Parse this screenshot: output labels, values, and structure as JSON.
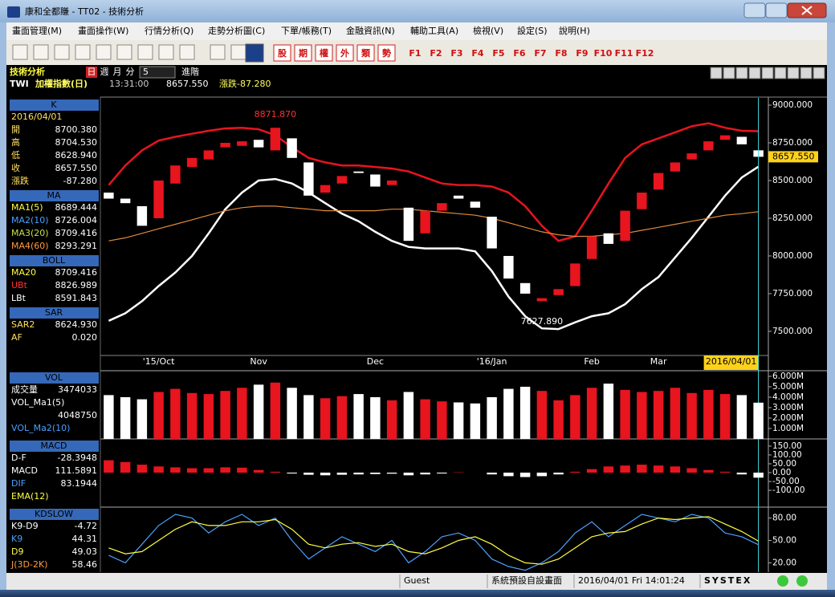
{
  "window": {
    "title": "康和全都賺 - TT02 - 技術分析"
  },
  "menu": [
    "畫面管理(M)",
    "畫面操作(W)",
    "行情分析(Q)",
    "走勢分析圖(C)",
    "下單/帳務(T)",
    "金融資訊(N)",
    "輔助工具(A)",
    "檢視(V)",
    "設定(S)",
    "說明(H)"
  ],
  "toolbar": {
    "quick": [
      "股",
      "期",
      "權",
      "外",
      "類",
      "勢"
    ],
    "function_keys": [
      "F1",
      "F2",
      "F3",
      "F4",
      "F5",
      "F6",
      "F7",
      "F8",
      "F9",
      "F10",
      "F11",
      "F12"
    ]
  },
  "header": {
    "title": "技術分析",
    "periods": [
      "日",
      "週",
      "月",
      "分"
    ],
    "interval": "5",
    "advanced": "進階",
    "symbol": "TWI",
    "name": "加權指數(日)",
    "time": "13:31:00",
    "price": "8657.550",
    "change": "漲跌-87.280"
  },
  "indicators": [
    {
      "title": "K",
      "rows": [
        {
          "label": "2016/04/01"
        },
        {
          "label": "開",
          "value": "8700.380"
        },
        {
          "label": "高",
          "value": "8704.530"
        },
        {
          "label": "低",
          "value": "8628.940"
        },
        {
          "label": "收",
          "value": "8657.550"
        },
        {
          "label": "漲跌",
          "value": "-87.280"
        }
      ]
    },
    {
      "title": "MA",
      "rows": [
        {
          "label": "MA1(5)",
          "value": "8689.444",
          "color": "#ffff40"
        },
        {
          "label": "MA2(10)",
          "value": "8726.004",
          "color": "#4aa0ff"
        },
        {
          "label": "MA3(20)",
          "value": "8709.416",
          "color": "#c8e040"
        },
        {
          "label": "MA4(60)",
          "value": "8293.291",
          "color": "#ff9a3c"
        }
      ]
    },
    {
      "title": "BOLL",
      "rows": [
        {
          "label": "MA20",
          "value": "8709.416",
          "color": "#ffff40"
        },
        {
          "label": "UBt",
          "value": "8826.989",
          "color": "#ff3030"
        },
        {
          "label": "LBt",
          "value": "8591.843",
          "color": "#ffffff"
        }
      ]
    },
    {
      "title": "SAR",
      "rows": [
        {
          "label": "SAR2",
          "value": "8624.930"
        },
        {
          "label": "AF",
          "value": "0.020"
        }
      ]
    },
    {
      "title": "VOL",
      "rows": [
        {
          "label": "成交量",
          "value": "3474033",
          "color": "#ffffff"
        },
        {
          "label": "VOL_Ma1(5)",
          "color": "#ffffff"
        },
        {
          "value": "4048750"
        },
        {
          "label": "VOL_Ma2(10)",
          "color": "#4aa0ff"
        }
      ]
    },
    {
      "title": "MACD",
      "rows": [
        {
          "label": "D-F",
          "value": "-28.3948",
          "color": "#ffffff"
        },
        {
          "label": "MACD",
          "value": "111.5891",
          "color": "#ffffff"
        },
        {
          "label": "DIF",
          "value": "83.1944",
          "color": "#4aa0ff"
        },
        {
          "label": "EMA(12)",
          "color": "#ffff40"
        }
      ]
    },
    {
      "title": "KDSLOW",
      "rows": [
        {
          "label": "K9-D9",
          "value": "-4.72",
          "color": "#ffffff"
        },
        {
          "label": "K9",
          "value": "44.31",
          "color": "#4aa0ff"
        },
        {
          "label": "D9",
          "value": "49.03",
          "color": "#ffff40"
        },
        {
          "label": "J(3D-2K)",
          "value": "58.46",
          "color": "#ff9a3c"
        }
      ]
    }
  ],
  "status": {
    "user": "Guest",
    "layout": "系統預設自設畫面",
    "datetime": "2016/04/01 Fri 14:01:24",
    "brand": "SYSTEX"
  },
  "chart_data": [
    {
      "type": "candlestick",
      "categories": [
        null,
        null,
        null,
        "'15/Oct",
        null,
        null,
        null,
        null,
        null,
        "Nov",
        null,
        null,
        null,
        null,
        null,
        null,
        "Dec",
        null,
        null,
        null,
        null,
        null,
        null,
        "'16/Jan",
        null,
        null,
        null,
        null,
        null,
        "Feb",
        null,
        null,
        null,
        "Mar",
        null,
        null,
        null,
        null,
        null,
        "2016/04/01"
      ],
      "open": [
        8420,
        8380,
        8330,
        8250,
        8480,
        8590,
        8640,
        8720,
        8730,
        8770,
        8700,
        8780,
        8620,
        8420,
        8480,
        8560,
        8540,
        8470,
        8320,
        8150,
        8300,
        8400,
        8360,
        8260,
        8000,
        7820,
        7700,
        7740,
        7800,
        7980,
        8150,
        8100,
        8310,
        8440,
        8560,
        8640,
        8700,
        8770,
        8790,
        8700.38
      ],
      "close": [
        8380,
        8350,
        8200,
        8500,
        8600,
        8650,
        8700,
        8750,
        8760,
        8720,
        8850,
        8650,
        8400,
        8470,
        8530,
        8550,
        8460,
        8500,
        8100,
        8300,
        8350,
        8380,
        8320,
        8050,
        7850,
        7750,
        7720,
        7780,
        7950,
        8130,
        8080,
        8300,
        8420,
        8550,
        8620,
        8680,
        8760,
        8800,
        8740,
        8657.55
      ],
      "up_color": "#e8141e",
      "down_color": "#ffffff",
      "overlays": [
        {
          "color": "#e8141e",
          "values": [
            8470,
            8600,
            8700,
            8765,
            8790,
            8810,
            8830,
            8846,
            8850,
            8840,
            8800,
            8720,
            8650,
            8620,
            8600,
            8600,
            8590,
            8580,
            8560,
            8520,
            8480,
            8470,
            8470,
            8460,
            8420,
            8330,
            8200,
            8100,
            8130,
            8300,
            8480,
            8650,
            8740,
            8780,
            8820,
            8860,
            8880,
            8850,
            8830,
            8826.99
          ]
        },
        {
          "color": "#ffffff",
          "values": [
            7570,
            7620,
            7700,
            7800,
            7890,
            8000,
            8150,
            8310,
            8420,
            8500,
            8510,
            8480,
            8420,
            8350,
            8280,
            8230,
            8160,
            8100,
            8060,
            8050,
            8050,
            8050,
            8030,
            7900,
            7730,
            7600,
            7520,
            7515,
            7560,
            7600,
            7620,
            7680,
            7780,
            7860,
            7990,
            8120,
            8260,
            8400,
            8520,
            8591.84
          ]
        },
        {
          "color": "#e08a3c",
          "values": [
            8100,
            8120,
            8150,
            8180,
            8210,
            8240,
            8270,
            8300,
            8320,
            8330,
            8330,
            8320,
            8310,
            8300,
            8300,
            8300,
            8300,
            8310,
            8310,
            8300,
            8290,
            8280,
            8270,
            8250,
            8220,
            8190,
            8160,
            8140,
            8130,
            8130,
            8140,
            8150,
            8170,
            8190,
            8210,
            8230,
            8250,
            8270,
            8280,
            8293.29
          ]
        }
      ],
      "annotations": [
        {
          "at": 10,
          "value": 8871.87,
          "label": "8871.870"
        },
        {
          "at": 26,
          "value": 7627.89,
          "label": "7627.890"
        }
      ],
      "current": {
        "value": 8657.55,
        "label": "8657.550"
      },
      "ylim": [
        7340,
        9048
      ],
      "yticks": [
        {
          "value": 9000,
          "label": "9000.000"
        },
        {
          "value": 8750,
          "label": "8750.000"
        },
        {
          "value": 8500,
          "label": "8500.000"
        },
        {
          "value": 8250,
          "label": "8250.000"
        },
        {
          "value": 8000,
          "label": "8000.000"
        },
        {
          "value": 7750,
          "label": "7750.000"
        },
        {
          "value": 7500,
          "label": "7500.000"
        }
      ]
    },
    {
      "type": "bar",
      "values": [
        4200000,
        4000000,
        3800000,
        4500000,
        4800000,
        4400000,
        4300000,
        4600000,
        4900000,
        5200000,
        5400000,
        4900000,
        4200000,
        3900000,
        4100000,
        4300000,
        4000000,
        3700000,
        4500000,
        3800000,
        3600000,
        3500000,
        3400000,
        4000000,
        4800000,
        5000000,
        4600000,
        3700000,
        4200000,
        4900000,
        5300000,
        4700000,
        4500000,
        4600000,
        4900000,
        4400000,
        4700000,
        4300000,
        4200000,
        3474033
      ],
      "ylim": [
        0,
        6460000
      ],
      "yticks": [
        {
          "value": 6000000,
          "label": "6.000M"
        },
        {
          "value": 5000000,
          "label": "5.000M"
        },
        {
          "value": 4000000,
          "label": "4.000M"
        },
        {
          "value": 3000000,
          "label": "3.000M"
        },
        {
          "value": 2000000,
          "label": "2.000M"
        },
        {
          "value": 1000000,
          "label": "1.000M"
        }
      ]
    },
    {
      "type": "bar",
      "values": [
        70,
        60,
        45,
        35,
        30,
        25,
        25,
        30,
        28,
        15,
        5,
        -5,
        -12,
        -15,
        -12,
        -10,
        -8,
        -6,
        -15,
        -10,
        -5,
        2,
        0,
        -10,
        -20,
        -25,
        -20,
        -10,
        5,
        20,
        35,
        40,
        45,
        40,
        35,
        25,
        15,
        5,
        -10,
        -28.39
      ],
      "up_color": "#e8141e",
      "down_color": "#ffffff",
      "ylim": [
        -195,
        186
      ],
      "yticks": [
        {
          "value": 150,
          "label": "150.00"
        },
        {
          "value": 100,
          "label": "100.00"
        },
        {
          "value": 50,
          "label": "50.00"
        },
        {
          "value": 0,
          "label": "0.00"
        },
        {
          "value": -50,
          "label": "-50.00"
        },
        {
          "value": -100,
          "label": "-100.00"
        }
      ]
    },
    {
      "type": "line",
      "series": [
        {
          "color": "#4aa0ff",
          "values": [
            30,
            20,
            45,
            70,
            85,
            80,
            60,
            75,
            85,
            70,
            80,
            50,
            25,
            40,
            55,
            45,
            35,
            50,
            20,
            35,
            55,
            60,
            50,
            25,
            15,
            10,
            20,
            35,
            60,
            75,
            55,
            70,
            85,
            80,
            75,
            85,
            80,
            60,
            55,
            44.31
          ]
        },
        {
          "color": "#ffff40",
          "values": [
            40,
            32,
            35,
            50,
            65,
            75,
            70,
            70,
            75,
            75,
            78,
            65,
            45,
            40,
            45,
            47,
            42,
            45,
            35,
            32,
            40,
            50,
            55,
            45,
            30,
            20,
            18,
            25,
            40,
            55,
            60,
            62,
            72,
            80,
            78,
            80,
            82,
            72,
            62,
            49.03
          ]
        }
      ],
      "ylim": [
        7.5,
        93.6
      ],
      "yticks": [
        {
          "value": 80,
          "label": "80.00"
        },
        {
          "value": 50,
          "label": "50.00"
        },
        {
          "value": 20,
          "label": "20.00"
        }
      ]
    }
  ]
}
